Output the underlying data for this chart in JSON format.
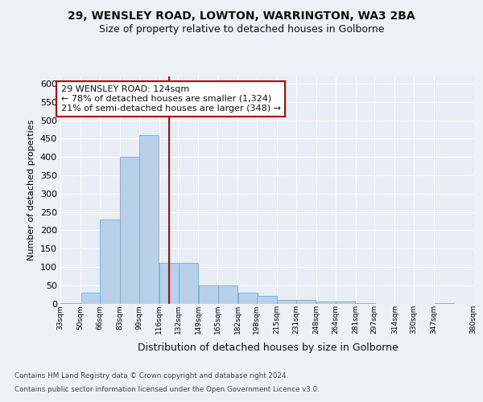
{
  "title1": "29, WENSLEY ROAD, LOWTON, WARRINGTON, WA3 2BA",
  "title2": "Size of property relative to detached houses in Golborne",
  "xlabel": "Distribution of detached houses by size in Golborne",
  "ylabel": "Number of detached properties",
  "annotation_line1": "29 WENSLEY ROAD: 124sqm",
  "annotation_line2": "← 78% of detached houses are smaller (1,324)",
  "annotation_line3": "21% of semi-detached houses are larger (348) →",
  "footer1": "Contains HM Land Registry data © Crown copyright and database right 2024.",
  "footer2": "Contains public sector information licensed under the Open Government Licence v3.0.",
  "bar_edges": [
    33,
    50,
    66,
    83,
    99,
    116,
    132,
    149,
    165,
    182,
    198,
    215,
    231,
    248,
    264,
    281,
    297,
    314,
    330,
    347,
    363
  ],
  "bar_heights": [
    1,
    30,
    230,
    400,
    460,
    110,
    110,
    50,
    50,
    30,
    20,
    10,
    10,
    5,
    5,
    1,
    0,
    0,
    0,
    1
  ],
  "bar_color": "#b8d0ea",
  "bar_edge_color": "#6aaed6",
  "property_size": 124,
  "vline_color": "#cc0000",
  "background_color": "#edf2f9",
  "plot_background": "#e8eef6",
  "grid_color": "#ffffff",
  "ylim": [
    0,
    620
  ],
  "yticks": [
    0,
    50,
    100,
    150,
    200,
    250,
    300,
    350,
    400,
    450,
    500,
    550,
    600
  ],
  "title1_fontsize": 10,
  "title2_fontsize": 9,
  "ylabel_fontsize": 8,
  "xlabel_fontsize": 9,
  "ytick_fontsize": 8,
  "xtick_fontsize": 6.5,
  "footer_fontsize": 6.3,
  "ann_fontsize": 8
}
